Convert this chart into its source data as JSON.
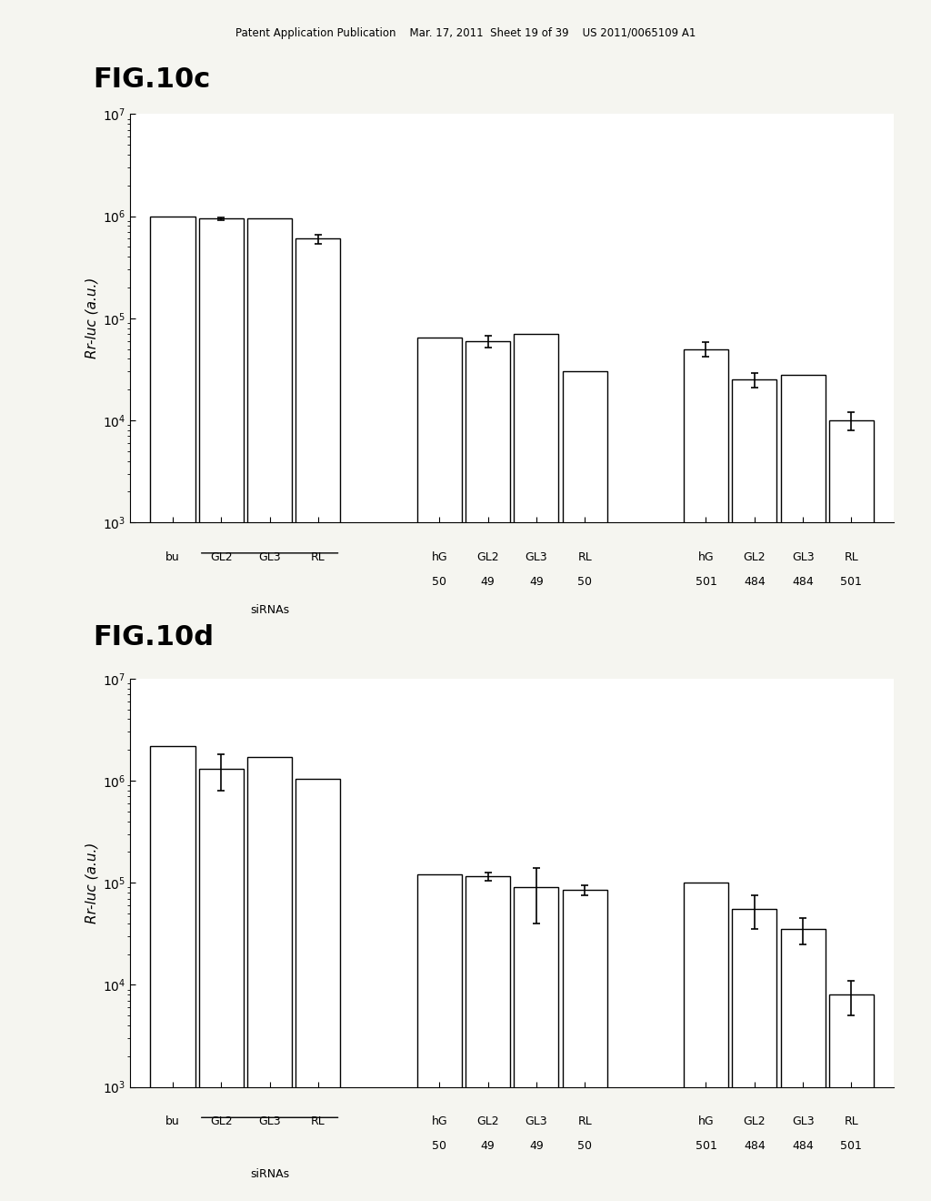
{
  "fig_title_c": "FIG.10c",
  "fig_title_d": "FIG.10d",
  "ylabel": "Rr-luc (a.u.)",
  "header_text": "Patent Application Publication    Mar. 17, 2011  Sheet 19 of 39    US 2011/0065109 A1",
  "chart_c": {
    "bars": [
      1000000,
      950000,
      950000,
      600000,
      65000,
      60000,
      70000,
      30000,
      50000,
      25000,
      28000,
      10000
    ],
    "errors": [
      0,
      30000,
      0,
      60000,
      0,
      8000,
      0,
      0,
      8000,
      4000,
      0,
      2000
    ],
    "ylim_low": 1000.0,
    "ylim_high": 10000000.0,
    "yticks": [
      1000.0,
      10000.0,
      100000.0,
      1000000.0,
      10000000.0
    ]
  },
  "chart_d": {
    "bars": [
      2200000,
      1300000,
      1700000,
      1050000,
      120000,
      115000,
      90000,
      85000,
      100000,
      55000,
      35000,
      8000
    ],
    "errors": [
      0,
      500000,
      0,
      0,
      0,
      10000,
      50000,
      10000,
      0,
      20000,
      10000,
      3000
    ],
    "ylim_low": 1000.0,
    "ylim_high": 10000000.0,
    "yticks": [
      1000.0,
      10000.0,
      100000.0,
      1000000.0,
      10000000.0
    ]
  },
  "group_labels_line1": [
    "bu",
    "GL2",
    "GL3",
    "RL",
    "hG",
    "GL2",
    "GL3",
    "RL",
    "hG",
    "GL2",
    "GL3",
    "RL"
  ],
  "group_labels_line2": [
    "",
    "",
    "",
    "",
    "50",
    "49",
    "49",
    "50",
    "501",
    "484",
    "484",
    "501"
  ],
  "siRNA_label": "siRNAs",
  "bar_color": "#ffffff",
  "bar_edgecolor": "#000000",
  "background_color": "#f0f0f0",
  "text_color": "#000000",
  "header_fontsize": 8.5,
  "fig_title_fontsize": 22,
  "ylabel_fontsize": 11,
  "tick_label_fontsize": 9,
  "xlabel_fontsize": 9
}
